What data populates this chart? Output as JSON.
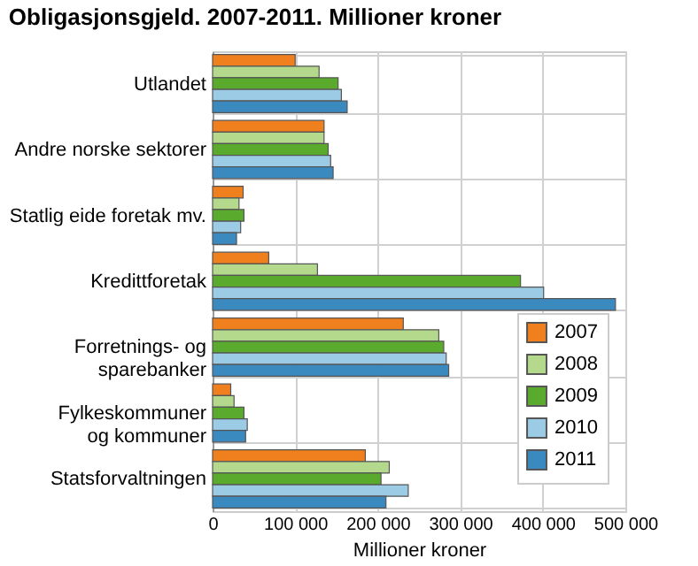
{
  "chart_data": {
    "type": "bar",
    "orientation": "horizontal",
    "title": "Obligasjonsgjeld. 2007-2011. Millioner kroner",
    "xlabel": "Millioner kroner",
    "categories": [
      "Utlandet",
      "Andre norske sektorer",
      "Statlig eide foretak mv.",
      "Kredittforetak",
      "Forretnings- og\nsparebanker",
      "Fylkeskommuner\nog kommuner",
      "Statsforvaltningen"
    ],
    "series": [
      {
        "name": "2007",
        "color": "#f07f1e",
        "values": [
          100000,
          135000,
          37000,
          68000,
          231000,
          22000,
          185000
        ]
      },
      {
        "name": "2008",
        "color": "#b5d98c",
        "values": [
          129000,
          135000,
          32000,
          127000,
          274000,
          26000,
          214000
        ]
      },
      {
        "name": "2009",
        "color": "#5aab2d",
        "values": [
          152000,
          140000,
          38000,
          373000,
          280000,
          38000,
          204000
        ]
      },
      {
        "name": "2010",
        "color": "#9ccbe5",
        "values": [
          156000,
          143000,
          34000,
          401000,
          283000,
          42000,
          237000
        ]
      },
      {
        "name": "2011",
        "color": "#3a8ac0",
        "values": [
          163000,
          146000,
          29000,
          488000,
          286000,
          40000,
          210000
        ]
      }
    ],
    "xlim": [
      0,
      500000
    ],
    "xticks": [
      {
        "value": 0,
        "label": "0"
      },
      {
        "value": 100000,
        "label": "100 000"
      },
      {
        "value": 200000,
        "label": "200 000"
      },
      {
        "value": 300000,
        "label": "300 000"
      },
      {
        "value": 400000,
        "label": "400 000"
      },
      {
        "value": 500000,
        "label": "500 000"
      }
    ],
    "grid": true,
    "legend": "right"
  }
}
